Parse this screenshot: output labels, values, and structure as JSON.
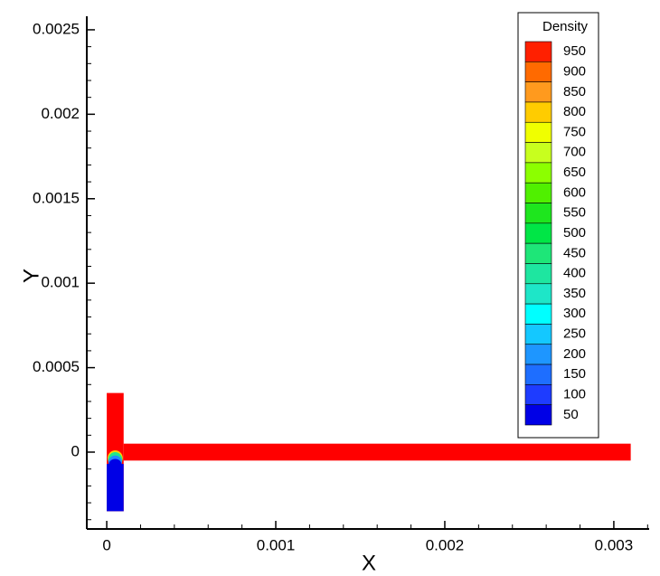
{
  "chart_data": {
    "type": "contour",
    "x_label": "X",
    "y_label": "Y",
    "xlim": [
      -0.000118,
      0.003209
    ],
    "ylim": [
      -0.000455,
      0.00258
    ],
    "xticks": [
      0,
      0.001,
      0.002,
      0.003
    ],
    "yticks": [
      0,
      0.0005,
      0.001,
      0.0015,
      0.002,
      0.0025
    ],
    "xminorticks": [
      0.0002,
      0.0004,
      0.0006,
      0.0008,
      0.0012,
      0.0014,
      0.0016,
      0.0018,
      0.0022,
      0.0024,
      0.0026,
      0.0028,
      0.0032
    ],
    "yminorticks": [
      -0.0004,
      -0.0003,
      -0.0002,
      -0.0001,
      0.0001,
      0.0002,
      0.0003,
      0.0004,
      0.0006,
      0.0007,
      0.0008,
      0.0009,
      0.0011,
      0.0012,
      0.0013,
      0.0014,
      0.0016,
      0.0017,
      0.0018,
      0.0019,
      0.0021,
      0.0022,
      0.0023,
      0.0024
    ],
    "legend_title": "Density",
    "levels": [
      950,
      900,
      850,
      800,
      750,
      700,
      650,
      600,
      550,
      500,
      450,
      400,
      350,
      300,
      250,
      200,
      150,
      100,
      50
    ],
    "level_colors": [
      "#ff2000",
      "#ff6a00",
      "#ff9a1e",
      "#ffcc00",
      "#f0ff00",
      "#c8ff1e",
      "#8cff00",
      "#50f000",
      "#1ee61e",
      "#00e646",
      "#1ee678",
      "#1ee6a0",
      "#1ee6c8",
      "#00ffff",
      "#14c8ff",
      "#1e96ff",
      "#1e6eff",
      "#1e3cff",
      "#0000e6"
    ],
    "regions": [
      {
        "kind": "rect",
        "x": [
          0,
          0.0001
        ],
        "y": [
          -0.00035,
          0.00035
        ],
        "color": "#ff0000"
      },
      {
        "kind": "rect",
        "x": [
          0.0001,
          0.0031
        ],
        "y": [
          -5e-05,
          5e-05
        ],
        "color": "#ff0000"
      },
      {
        "kind": "ellipse",
        "x": [
          5e-06,
          9.5e-05
        ],
        "y": [
          -8e-05,
          1e-05
        ],
        "color": "#ffd200"
      },
      {
        "kind": "ellipse",
        "x": [
          8e-06,
          9.2e-05
        ],
        "y": [
          -9e-05,
          0.0
        ],
        "color": "#1ee68c"
      },
      {
        "kind": "ellipse",
        "x": [
          1e-05,
          9e-05
        ],
        "y": [
          -0.0001,
          -2e-05
        ],
        "color": "#1e8cff"
      },
      {
        "kind": "ellipse",
        "x": [
          1.2e-05,
          8.8e-05
        ],
        "y": [
          -0.00011,
          -4e-05
        ],
        "color": "#0000e6"
      },
      {
        "kind": "rect",
        "x": [
          0,
          0.0001
        ],
        "y": [
          -0.00035,
          -7e-05
        ],
        "color": "#0000e6"
      }
    ]
  }
}
